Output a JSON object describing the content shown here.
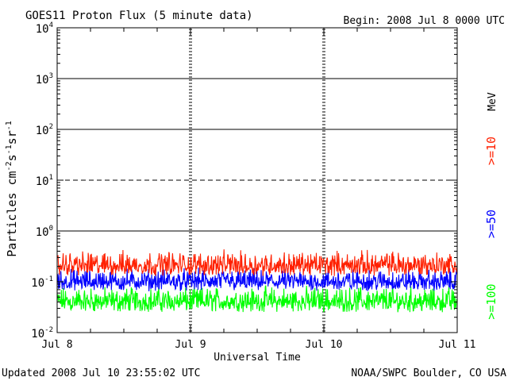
{
  "chart_data": {
    "type": "line",
    "title": "GOES11 Proton Flux (5 minute data)",
    "begin_label": "Begin: 2008 Jul 8 0000 UTC",
    "xlabel": "Universal Time",
    "ylabel": {
      "base": "Particles cm",
      "exp1": "-2",
      "mid1": "s",
      "exp2": "-1",
      "mid2": "sr",
      "exp3": "-1"
    },
    "y_scale": "log",
    "ylim": [
      0.01,
      10000
    ],
    "y_ticks": [
      {
        "base": "10",
        "exp": "-2",
        "value": 0.01
      },
      {
        "base": "10",
        "exp": "-1",
        "value": 0.1
      },
      {
        "base": "10",
        "exp": "0",
        "value": 1
      },
      {
        "base": "10",
        "exp": "1",
        "value": 10
      },
      {
        "base": "10",
        "exp": "2",
        "value": 100
      },
      {
        "base": "10",
        "exp": "3",
        "value": 1000
      },
      {
        "base": "10",
        "exp": "4",
        "value": 10000
      }
    ],
    "x_ticks": [
      "Jul 8",
      "Jul 9",
      "Jul 10",
      "Jul 11"
    ],
    "xlim_days": [
      0,
      3
    ],
    "reference_lines": [
      {
        "value": 1,
        "style": "solid"
      },
      {
        "value": 10,
        "style": "dashed"
      },
      {
        "value": 100,
        "style": "solid"
      },
      {
        "value": 1000,
        "style": "solid"
      }
    ],
    "legend_unit": "MeV",
    "series": [
      {
        "name": ">=10",
        "color": "#ff2000",
        "typical_range": [
          0.13,
          0.45
        ]
      },
      {
        "name": ">=50",
        "color": "#0000ff",
        "typical_range": [
          0.065,
          0.2
        ]
      },
      {
        "name": ">=100",
        "color": "#00ff00",
        "typical_range": [
          0.025,
          0.09
        ]
      }
    ]
  },
  "footer": {
    "updated": "Updated 2008 Jul 10 23:55:02 UTC",
    "source": "NOAA/SWPC Boulder, CO USA"
  }
}
